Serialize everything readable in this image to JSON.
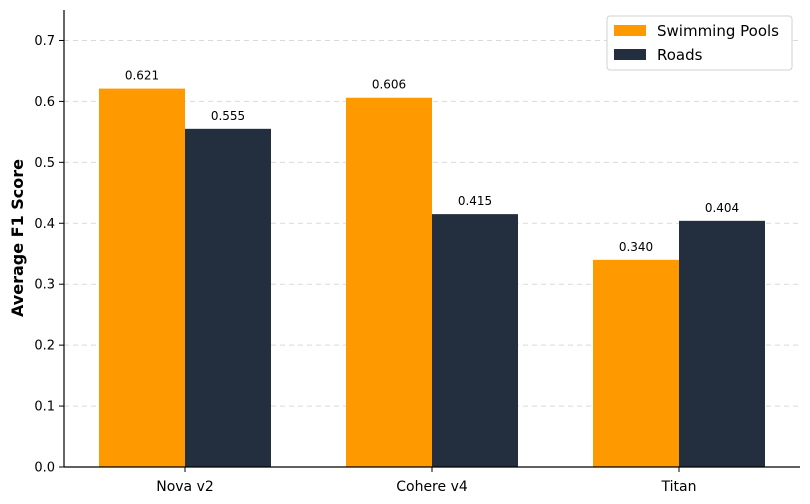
{
  "chart_data": {
    "type": "bar",
    "categories": [
      "Nova v2",
      "Cohere v4",
      "Titan"
    ],
    "series": [
      {
        "name": "Swimming Pools",
        "color": "#FF9900",
        "values": [
          0.621,
          0.606,
          0.34
        ],
        "labels": [
          "0.621",
          "0.606",
          "0.340"
        ]
      },
      {
        "name": "Roads",
        "color": "#232F3E",
        "values": [
          0.555,
          0.415,
          0.404
        ],
        "labels": [
          "0.555",
          "0.415",
          "0.404"
        ]
      }
    ],
    "ylabel": "Average F1 Score",
    "ylim": [
      0,
      0.75
    ],
    "yticks": [
      "0.0",
      "0.1",
      "0.2",
      "0.3",
      "0.4",
      "0.5",
      "0.6",
      "0.7"
    ],
    "grid": true,
    "legend_position": "top-right"
  }
}
